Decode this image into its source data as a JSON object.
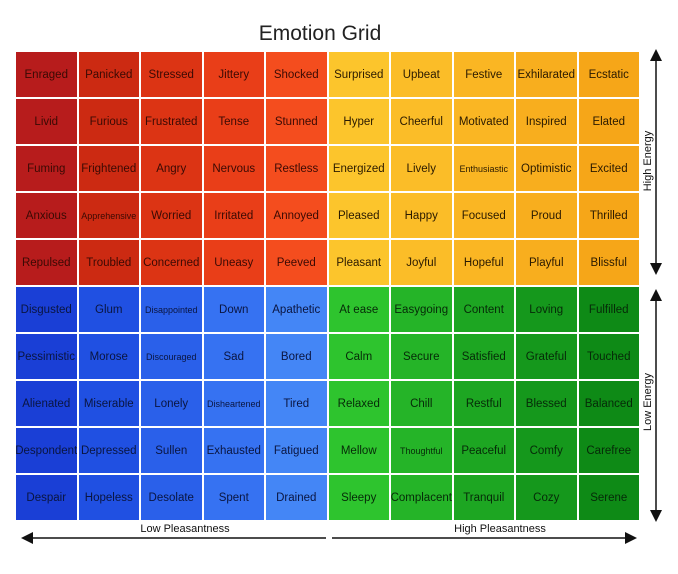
{
  "title": "Emotion Grid",
  "axes": {
    "x_left": "Low Pleasantness",
    "x_right": "High Pleasantness",
    "y_top": "High Energy",
    "y_bottom": "Low Energy"
  },
  "rows": [
    [
      "Enraged",
      "Panicked",
      "Stressed",
      "Jittery",
      "Shocked",
      "Surprised",
      "Upbeat",
      "Festive",
      "Exhilarated",
      "Ecstatic"
    ],
    [
      "Livid",
      "Furious",
      "Frustrated",
      "Tense",
      "Stunned",
      "Hyper",
      "Cheerful",
      "Motivated",
      "Inspired",
      "Elated"
    ],
    [
      "Fuming",
      "Frightened",
      "Angry",
      "Nervous",
      "Restless",
      "Energized",
      "Lively",
      "Enthusiastic",
      "Optimistic",
      "Excited"
    ],
    [
      "Anxious",
      "Apprehensive",
      "Worried",
      "Irritated",
      "Annoyed",
      "Pleased",
      "Happy",
      "Focused",
      "Proud",
      "Thrilled"
    ],
    [
      "Repulsed",
      "Troubled",
      "Concerned",
      "Uneasy",
      "Peeved",
      "Pleasant",
      "Joyful",
      "Hopeful",
      "Playful",
      "Blissful"
    ],
    [
      "Disgusted",
      "Glum",
      "Disappointed",
      "Down",
      "Apathetic",
      "At ease",
      "Easygoing",
      "Content",
      "Loving",
      "Fulfilled"
    ],
    [
      "Pessimistic",
      "Morose",
      "Discouraged",
      "Sad",
      "Bored",
      "Calm",
      "Secure",
      "Satisfied",
      "Grateful",
      "Touched"
    ],
    [
      "Alienated",
      "Miserable",
      "Lonely",
      "Disheartened",
      "Tired",
      "Relaxed",
      "Chill",
      "Restful",
      "Blessed",
      "Balanced"
    ],
    [
      "Despondent",
      "Depressed",
      "Sullen",
      "Exhausted",
      "Fatigued",
      "Mellow",
      "Thoughtful",
      "Peaceful",
      "Comfy",
      "Carefree"
    ],
    [
      "Despair",
      "Hopeless",
      "Desolate",
      "Spent",
      "Drained",
      "Sleepy",
      "Complacent",
      "Tranquil",
      "Cozy",
      "Serene"
    ]
  ],
  "colors": {
    "red": [
      "#b71c1c",
      "#cc2a12",
      "#dc3414",
      "#e93e18",
      "#f44d1e"
    ],
    "yellow": [
      "#fcc52c",
      "#fbbd28",
      "#fab623",
      "#f8ae1e",
      "#f6a618"
    ],
    "blue": [
      "#1a3fd6",
      "#2050e2",
      "#2a60ea",
      "#3672f2",
      "#4486f6"
    ],
    "green": [
      "#2ec42e",
      "#25b428",
      "#1da622",
      "#15981c",
      "#0e8a16"
    ]
  }
}
